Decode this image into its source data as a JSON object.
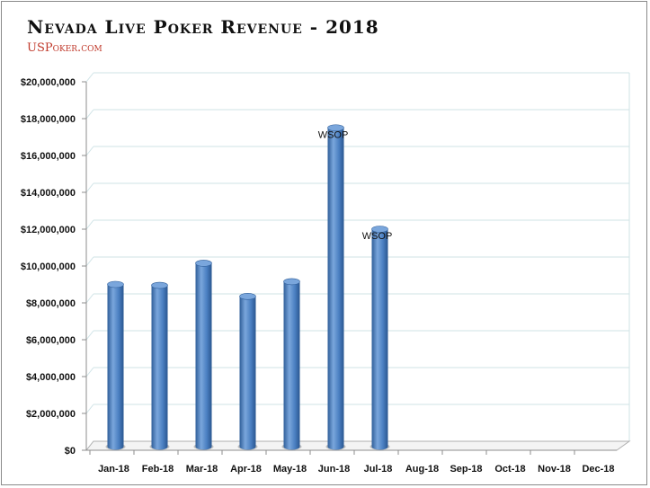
{
  "header": {
    "title": "Nevada Live Poker Revenue - 2018",
    "subtitle": "USPoker.com"
  },
  "colors": {
    "bar": "#4a7fc1",
    "bar_dark": "#2f5e99",
    "bar_light": "#7aa6dc",
    "grid": "#cfe3e6",
    "axis": "#8c8c8c",
    "floor": "#b0b0b0"
  },
  "chart_data": {
    "type": "bar",
    "title": "Nevada Live Poker Revenue - 2018",
    "xlabel": "",
    "ylabel": "",
    "categories": [
      "Jan-18",
      "Feb-18",
      "Mar-18",
      "Apr-18",
      "May-18",
      "Jun-18",
      "Jul-18",
      "Aug-18",
      "Sep-18",
      "Oct-18",
      "Nov-18",
      "Dec-18"
    ],
    "values": [
      9000000,
      8950000,
      10150000,
      8350000,
      9150000,
      17500000,
      12000000,
      null,
      null,
      null,
      null,
      null
    ],
    "annotations": [
      {
        "category": "Jun-18",
        "text": "WSOP"
      },
      {
        "category": "Jul-18",
        "text": "WSOP"
      }
    ],
    "yticks": [
      "$0",
      "$2,000,000",
      "$4,000,000",
      "$6,000,000",
      "$8,000,000",
      "$10,000,000",
      "$12,000,000",
      "$14,000,000",
      "$16,000,000",
      "$18,000,000",
      "$20,000,000"
    ],
    "ylim": [
      0,
      20000000
    ],
    "grid": true,
    "legend": "none",
    "style": "3d-cylinder"
  }
}
